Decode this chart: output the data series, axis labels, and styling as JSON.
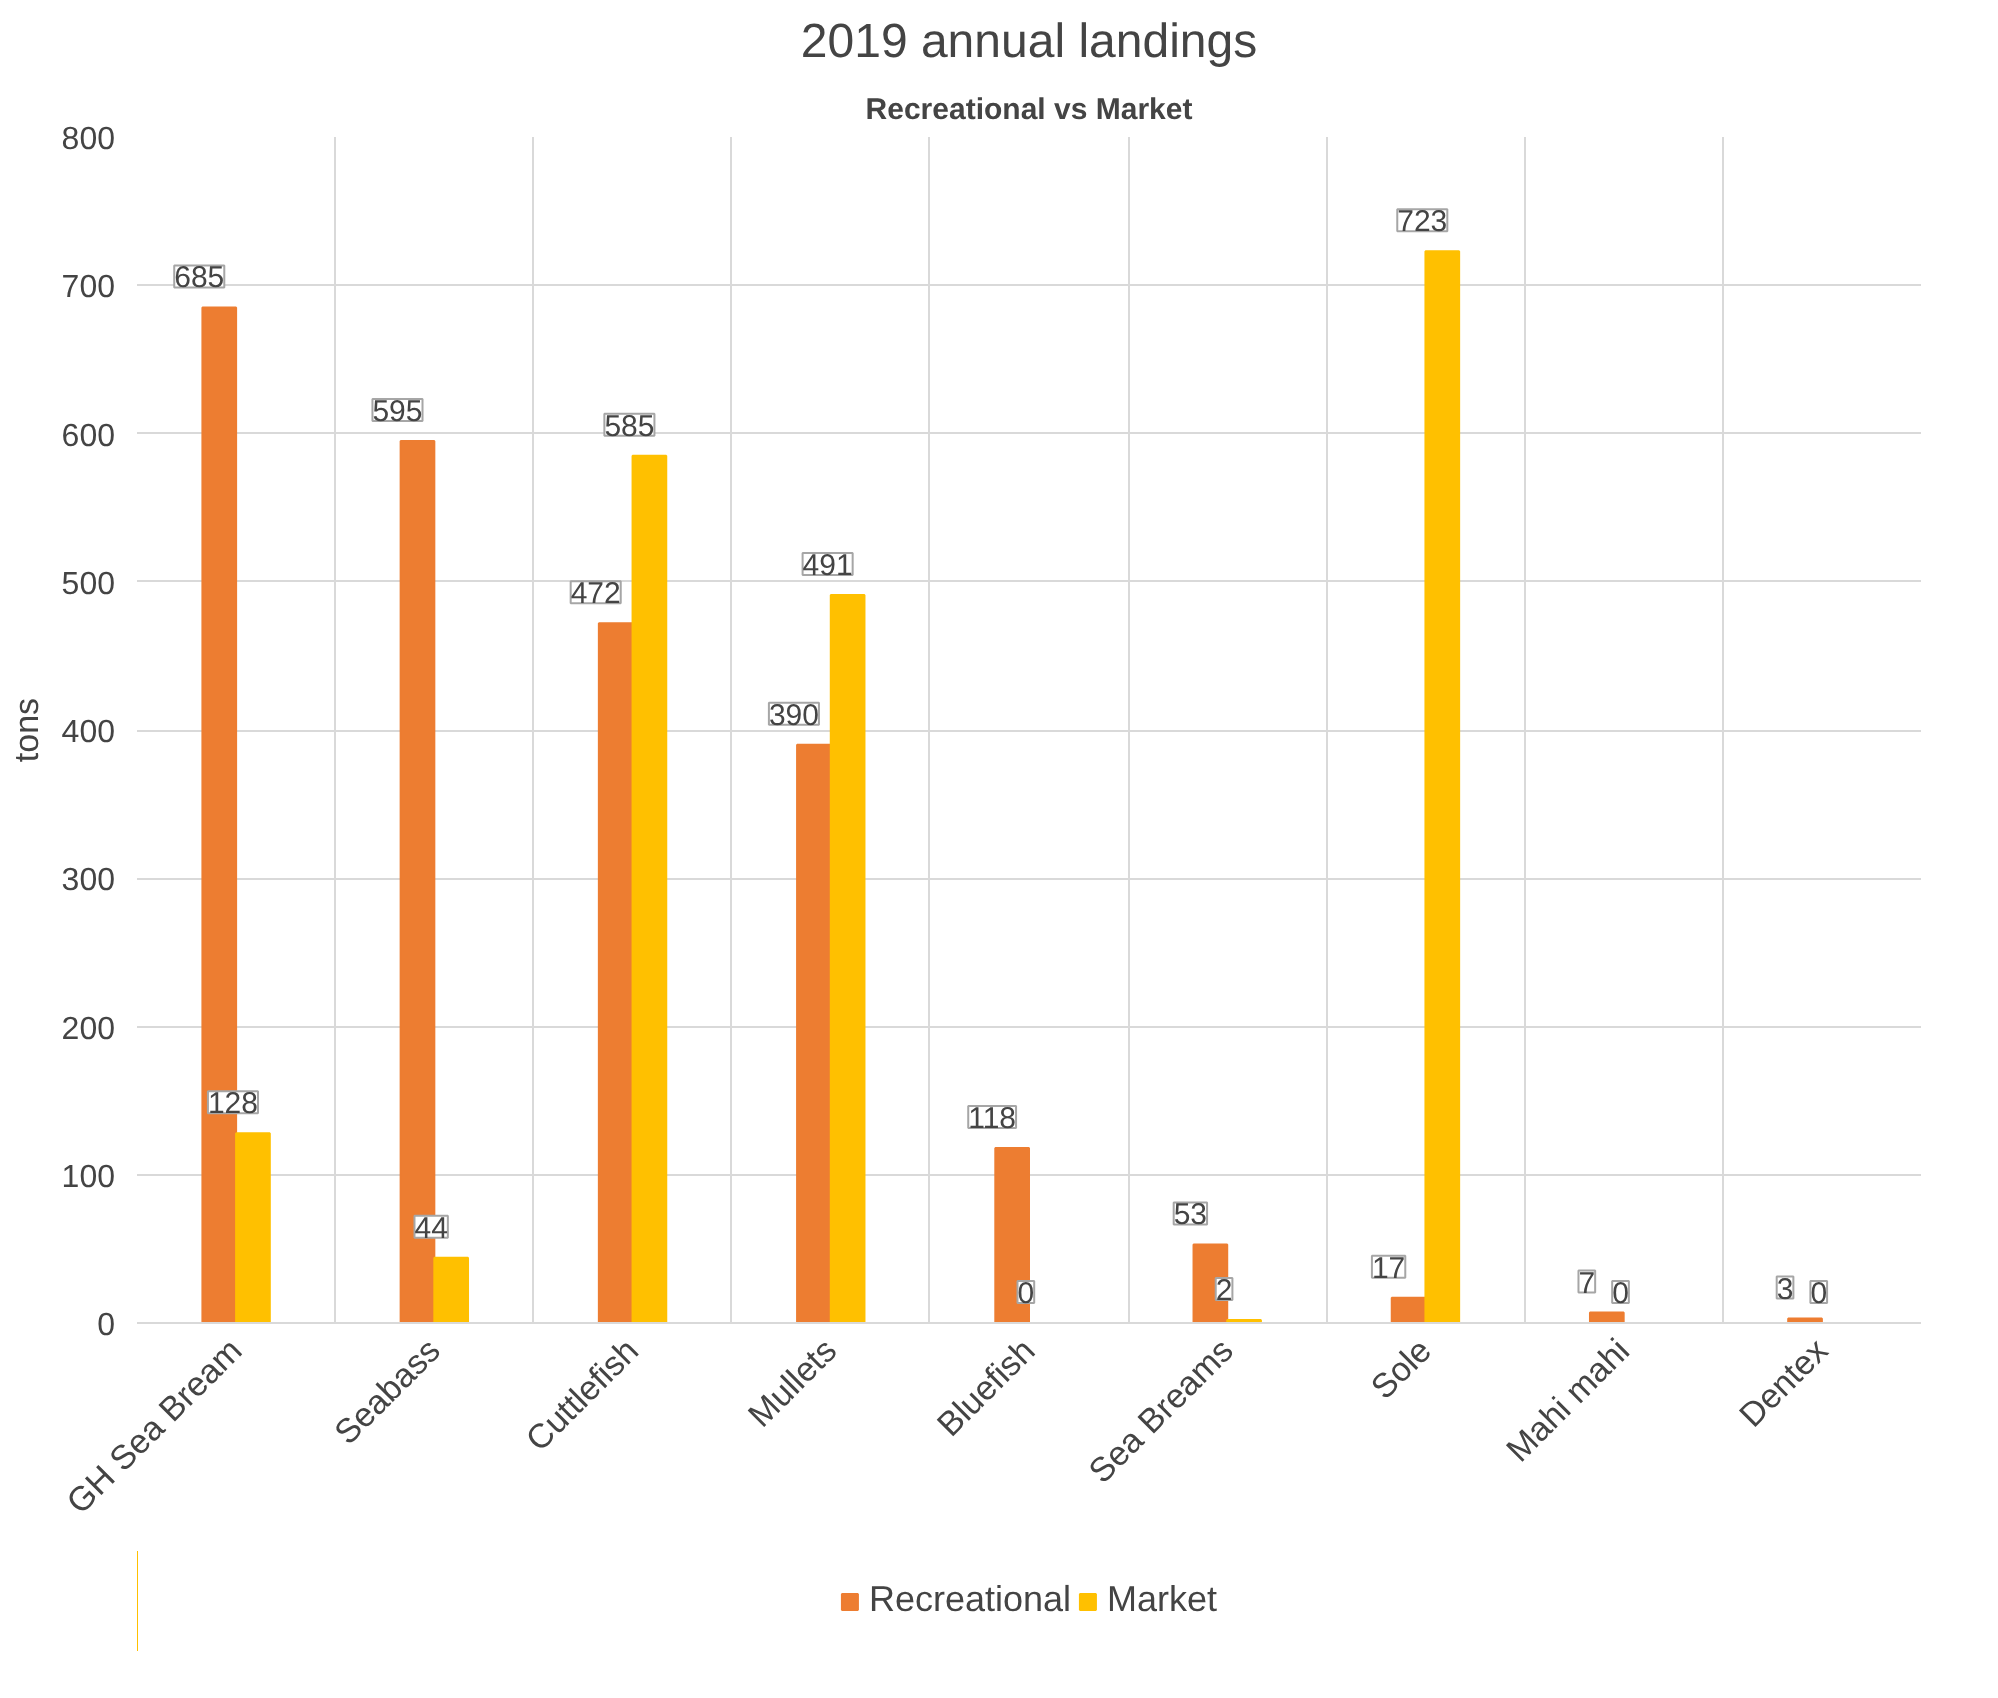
{
  "chart_data": {
    "type": "bar",
    "title": "2019 annual landings",
    "subtitle": "Recreational vs Market",
    "ylabel": "tons",
    "categories": [
      "GH Sea Bream",
      "Seabass",
      "Cuttlefish",
      "Mullets",
      "Bluefish",
      "Sea Breams",
      "Sole",
      "Mahi mahi",
      "Dentex"
    ],
    "series": [
      {
        "name": "Recreational",
        "color": "#ed7d31",
        "values": [
          685,
          595,
          472,
          390,
          118,
          53,
          17,
          7,
          3
        ]
      },
      {
        "name": "Market",
        "color": "#ffc000",
        "values": [
          128,
          44,
          585,
          491,
          0,
          2,
          723,
          0,
          0
        ]
      }
    ],
    "ylim": [
      0,
      800
    ],
    "yticks": [
      0,
      100,
      200,
      300,
      400,
      500,
      600,
      700,
      800
    ],
    "grid": true,
    "legend": "bottom",
    "data_labels": true
  }
}
